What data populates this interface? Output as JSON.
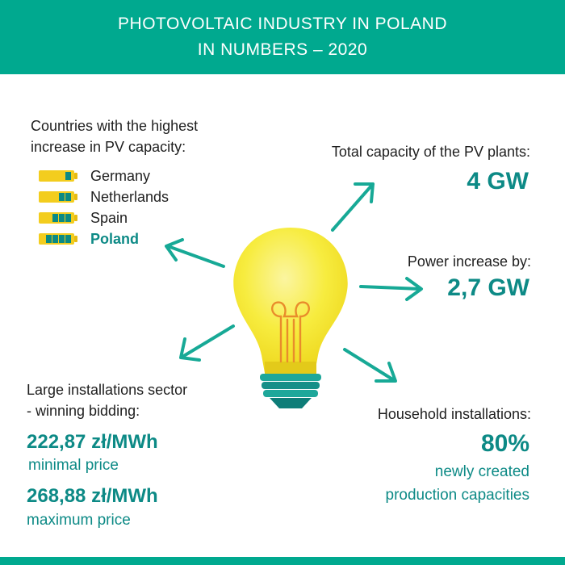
{
  "header": {
    "title_line1": "PHOTOVOLTAIC INDUSTRY IN POLAND",
    "title_line2": "IN NUMBERS – 2020"
  },
  "countries": {
    "heading_line1": "Countries with the highest",
    "heading_line2": "increase in PV capacity:",
    "items": [
      {
        "name": "Germany",
        "cells": 1,
        "highlight": false
      },
      {
        "name": "Netherlands",
        "cells": 2,
        "highlight": false
      },
      {
        "name": "Spain",
        "cells": 3,
        "highlight": false
      },
      {
        "name": "Poland",
        "cells": 4,
        "highlight": true
      }
    ]
  },
  "total_capacity": {
    "label": "Total capacity of the PV plants:",
    "value": "4 GW"
  },
  "power_increase": {
    "label": "Power increase by:",
    "value": "2,7 GW"
  },
  "large_installations": {
    "heading_line1": "Large installations sector",
    "heading_line2": "- winning bidding:",
    "min_value": "222,87 zł/MWh",
    "min_label": "minimal price",
    "max_value": "268,88 zł/MWh",
    "max_label": "maximum price"
  },
  "household": {
    "label": "Household installations:",
    "value": "80%",
    "desc_line1": "newly created",
    "desc_line2": "production capacities"
  },
  "colors": {
    "teal": "#00a98f",
    "dark_teal": "#0d8a86",
    "bulb_yellow": "#f7ec3f",
    "battery_yellow": "#f3cd1e",
    "arrow": "#17a996"
  },
  "icons": {
    "bulb": "light-bulb-icon",
    "battery": "battery-icon",
    "arrow": "arrow-icon"
  }
}
